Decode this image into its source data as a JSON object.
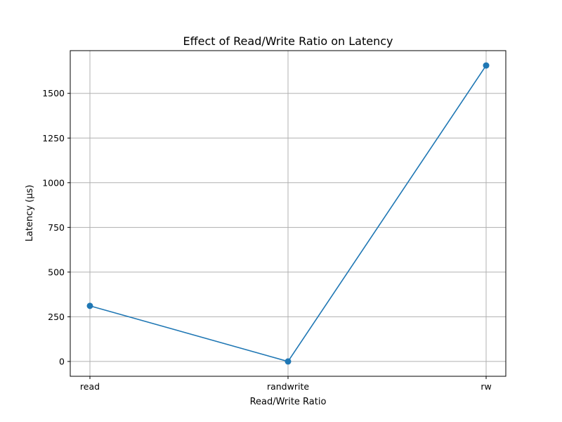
{
  "chart_data": {
    "type": "line",
    "title": "Effect of Read/Write Ratio on Latency",
    "xlabel": "Read/Write Ratio",
    "ylabel": "Latency (µs)",
    "categories": [
      "read",
      "randwrite",
      "rw"
    ],
    "series": [
      {
        "values": [
          311,
          0,
          1656
        ],
        "color": "#1f77b4",
        "marker": "circle"
      }
    ],
    "ylim": [
      -83,
      1739
    ],
    "yticks": [
      0,
      250,
      500,
      750,
      1000,
      1250,
      1500
    ],
    "ytick_labels": [
      "0",
      "250",
      "500",
      "750",
      "1000",
      "1250",
      "1500"
    ],
    "grid": true,
    "legend": "none"
  }
}
